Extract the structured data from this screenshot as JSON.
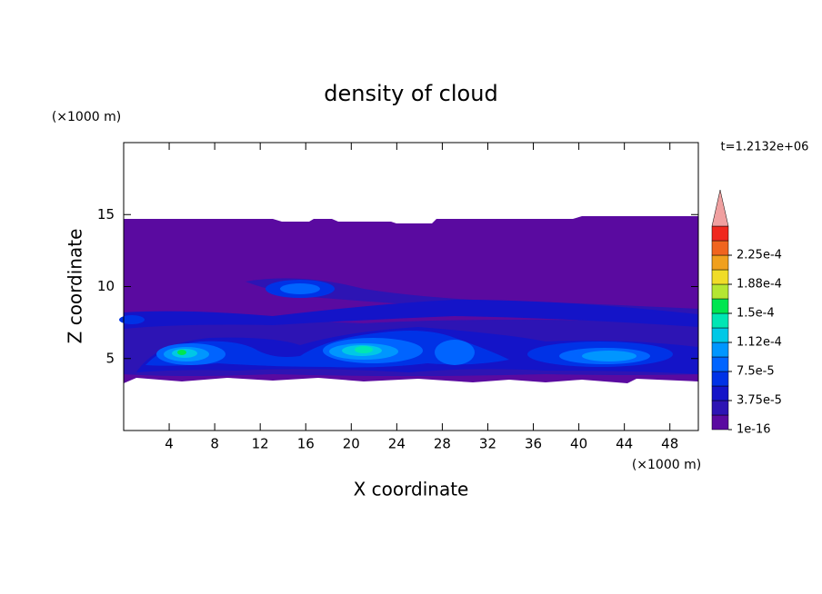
{
  "chart_data": {
    "type": "contour",
    "title": "density of cloud",
    "x_label": "X coordinate",
    "y_label": "Z coordinate",
    "x_unit": "(×1000 m)",
    "y_unit": "(×1000 m)",
    "annotation": "t=1.2132e+06",
    "xlim": [
      0,
      50.5
    ],
    "ylim": [
      0,
      20
    ],
    "xticks": [
      4,
      8,
      12,
      16,
      20,
      24,
      28,
      32,
      36,
      40,
      44,
      48
    ],
    "yticks": [
      5,
      10,
      15
    ],
    "levels": [
      {
        "value": 1e-16,
        "label": "1e-16"
      },
      {
        "value": 3.75e-05,
        "label": "3.75e-5"
      },
      {
        "value": 7.5e-05,
        "label": "7.5e-5"
      },
      {
        "value": 0.000112,
        "label": "1.12e-4"
      },
      {
        "value": 0.00015,
        "label": "1.5e-4"
      },
      {
        "value": 0.000188,
        "label": "1.88e-4"
      },
      {
        "value": 0.000225,
        "label": "2.25e-4"
      }
    ],
    "colors": [
      "#5a0aa0",
      "#2d14b4",
      "#1414c8",
      "#0032e6",
      "#0064ff",
      "#0096ff",
      "#00c8e6",
      "#00e6b4",
      "#00e650",
      "#b4e632",
      "#f0dc28",
      "#f0a01e",
      "#f0641e",
      "#f0281e"
    ],
    "extend_color": "#f0a0a0"
  }
}
